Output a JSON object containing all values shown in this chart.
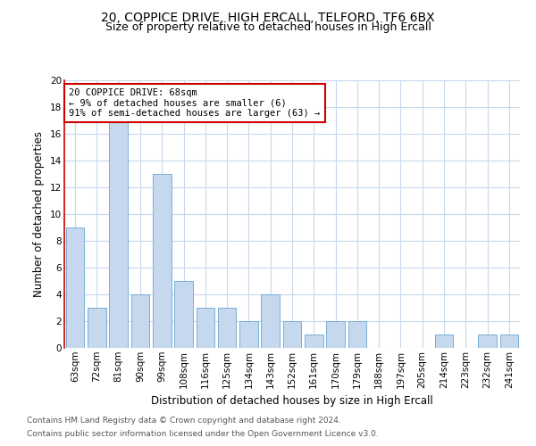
{
  "title": "20, COPPICE DRIVE, HIGH ERCALL, TELFORD, TF6 6BX",
  "subtitle": "Size of property relative to detached houses in High Ercall",
  "xlabel": "Distribution of detached houses by size in High Ercall",
  "ylabel": "Number of detached properties",
  "categories": [
    "63sqm",
    "72sqm",
    "81sqm",
    "90sqm",
    "99sqm",
    "108sqm",
    "116sqm",
    "125sqm",
    "134sqm",
    "143sqm",
    "152sqm",
    "161sqm",
    "170sqm",
    "179sqm",
    "188sqm",
    "197sqm",
    "205sqm",
    "214sqm",
    "223sqm",
    "232sqm",
    "241sqm"
  ],
  "values": [
    9,
    3,
    17,
    4,
    13,
    5,
    3,
    3,
    2,
    4,
    2,
    1,
    2,
    2,
    0,
    0,
    0,
    1,
    0,
    1,
    1
  ],
  "bar_color": "#c5d8ee",
  "bar_edge_color": "#7aafd4",
  "annotation_text": "20 COPPICE DRIVE: 68sqm\n← 9% of detached houses are smaller (6)\n91% of semi-detached houses are larger (63) →",
  "annotation_box_color": "white",
  "annotation_box_edge_color": "#cc0000",
  "vline_color": "#cc0000",
  "grid_color": "#c8d8ec",
  "ylim": [
    0,
    20
  ],
  "yticks": [
    0,
    2,
    4,
    6,
    8,
    10,
    12,
    14,
    16,
    18,
    20
  ],
  "footer_line1": "Contains HM Land Registry data © Crown copyright and database right 2024.",
  "footer_line2": "Contains public sector information licensed under the Open Government Licence v3.0.",
  "title_fontsize": 10,
  "subtitle_fontsize": 9,
  "xlabel_fontsize": 8.5,
  "ylabel_fontsize": 8.5,
  "tick_fontsize": 7.5,
  "annotation_fontsize": 7.5,
  "footer_fontsize": 6.5
}
